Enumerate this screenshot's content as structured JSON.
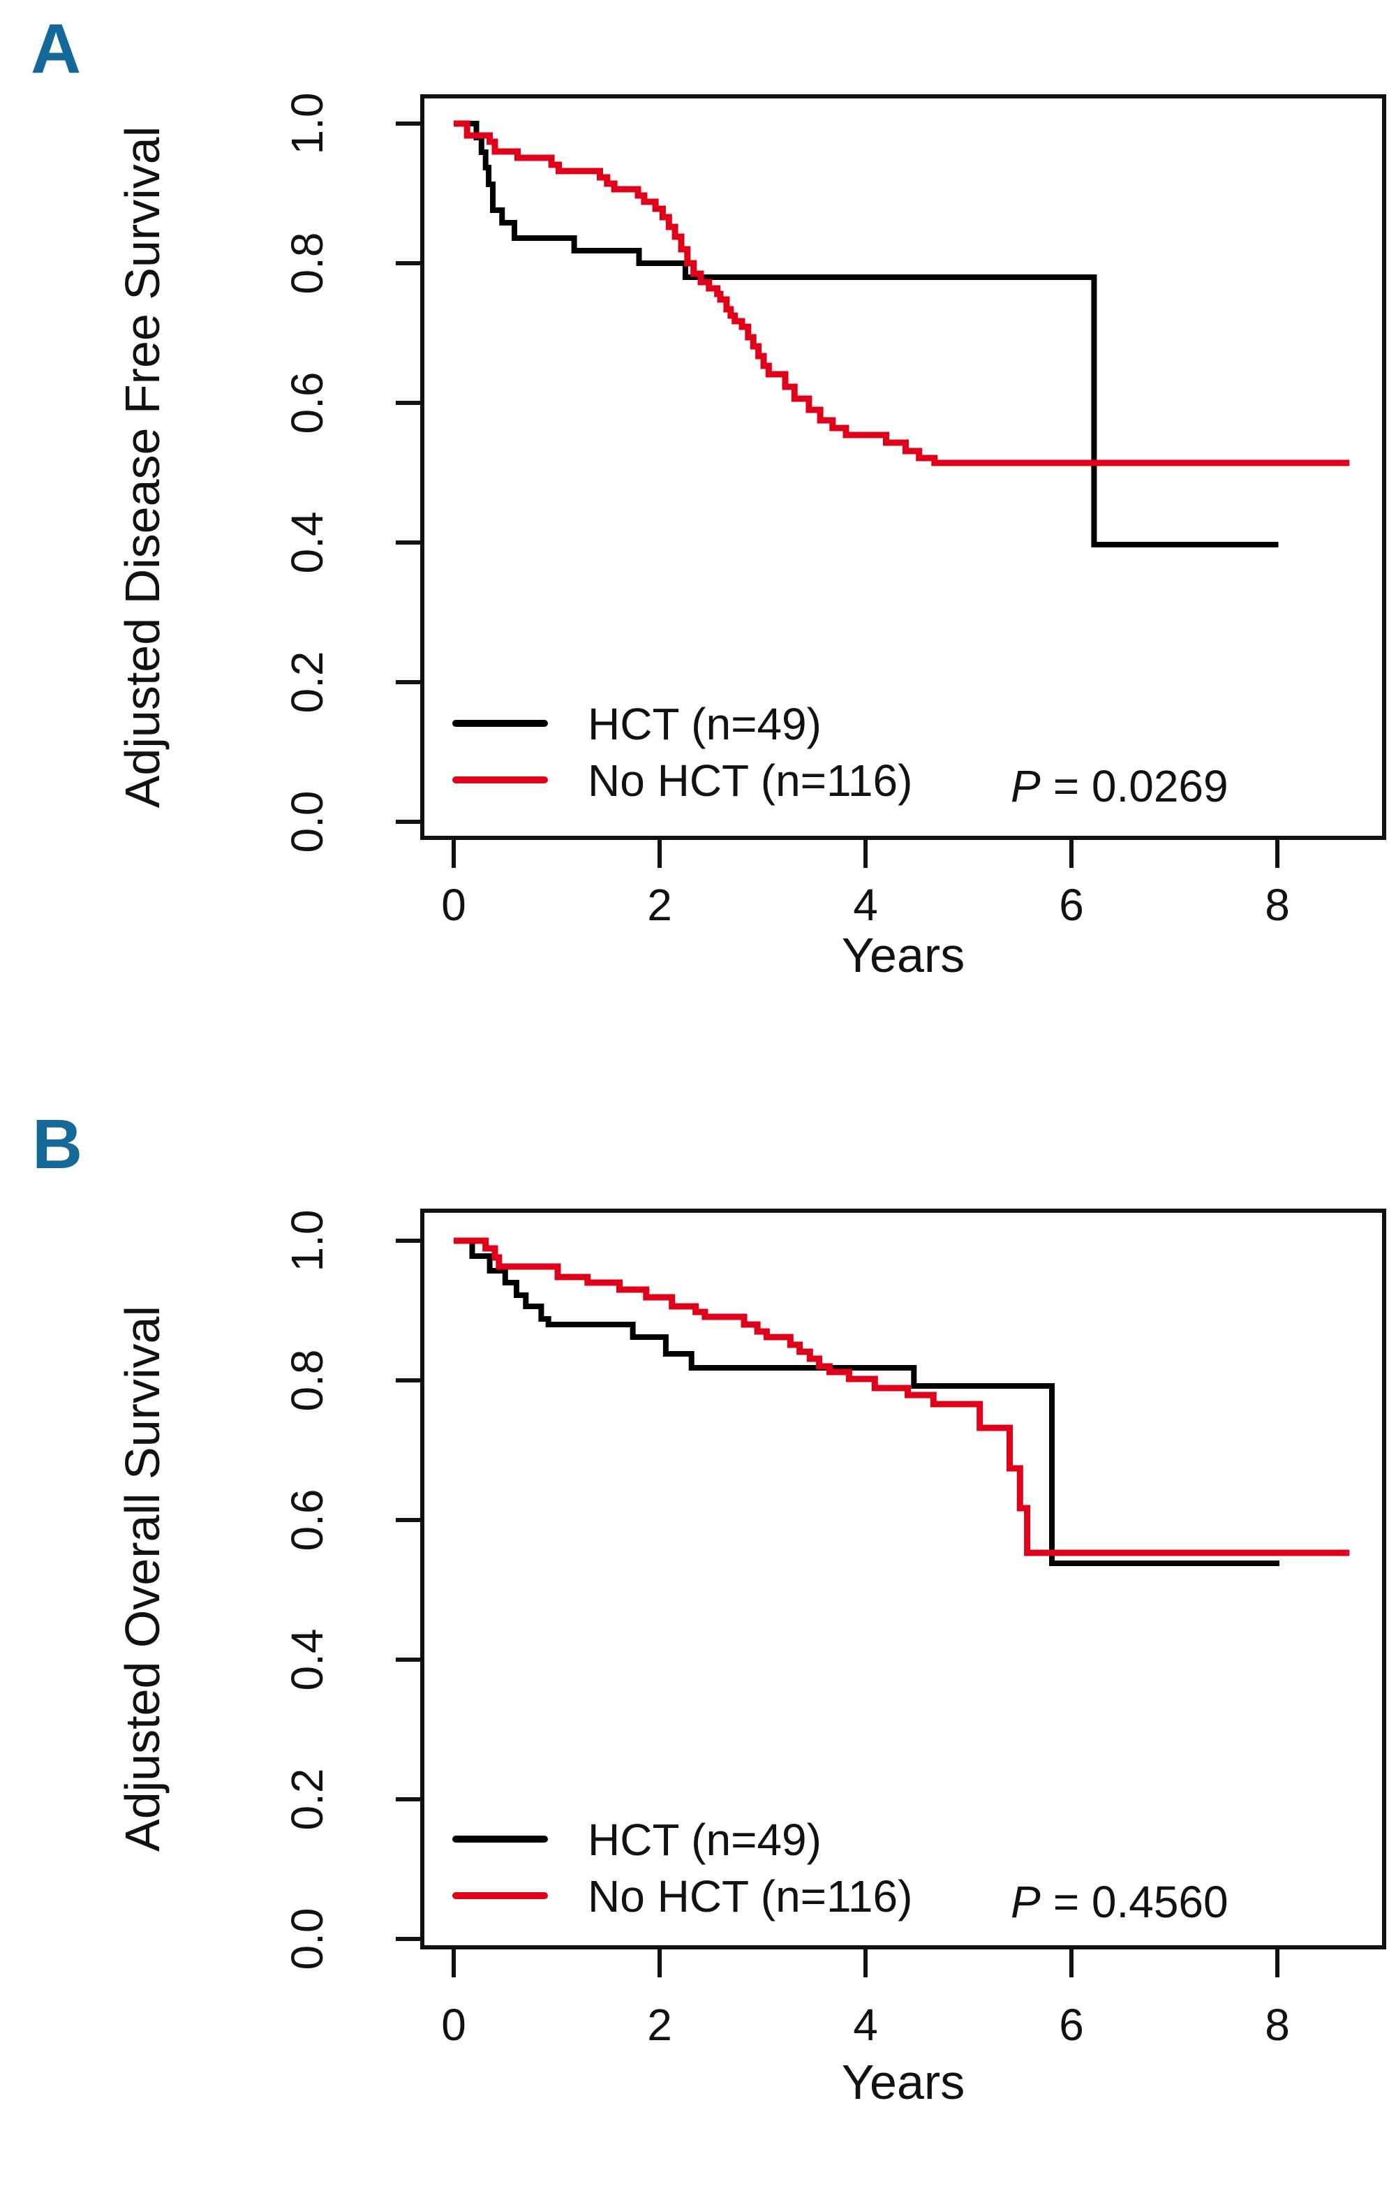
{
  "colors": {
    "accent": "#156999",
    "hct_series": "#000000",
    "no_hct_series": "#e10019",
    "axis": "#111111",
    "background": "#ffffff"
  },
  "chart_data": [
    {
      "type": "line",
      "subtype": "kaplan-meier-step",
      "panel_label": "A",
      "xlabel": "Years",
      "ylabel": "Adjusted Disease Free Survival",
      "xlim": [
        0,
        8.8
      ],
      "ylim": [
        0.0,
        1.0
      ],
      "xticks": [
        0,
        2,
        4,
        6,
        8
      ],
      "yticks": [
        0.0,
        0.2,
        0.4,
        0.6,
        0.8,
        1.0
      ],
      "ytick_labels": [
        "0.0",
        "0.2",
        "0.4",
        "0.6",
        "0.8",
        "1.0"
      ],
      "grid": false,
      "legend_position": "inside-bottom-left",
      "p_label": "P",
      "p_value": "= 0.0269",
      "series": [
        {
          "name": "HCT (n=49)",
          "color": "#000000",
          "start": [
            0,
            1.0
          ],
          "steps": [
            [
              0.22,
              0.98
            ],
            [
              0.27,
              0.959
            ],
            [
              0.31,
              0.937
            ],
            [
              0.34,
              0.913
            ],
            [
              0.38,
              0.876
            ],
            [
              0.47,
              0.858
            ],
            [
              0.59,
              0.836
            ],
            [
              1.17,
              0.818
            ],
            [
              1.8,
              0.8
            ],
            [
              2.25,
              0.78
            ],
            [
              6.22,
              0.397
            ]
          ],
          "end_time": 8.01
        },
        {
          "name": "No HCT (n=116)",
          "color": "#e10019",
          "start": [
            0,
            1.0
          ],
          "steps": [
            [
              0.13,
              0.983
            ],
            [
              0.35,
              0.974
            ],
            [
              0.4,
              0.96
            ],
            [
              0.62,
              0.951
            ],
            [
              0.95,
              0.941
            ],
            [
              1.02,
              0.932
            ],
            [
              1.42,
              0.923
            ],
            [
              1.49,
              0.914
            ],
            [
              1.56,
              0.906
            ],
            [
              1.79,
              0.897
            ],
            [
              1.85,
              0.888
            ],
            [
              1.96,
              0.878
            ],
            [
              2.03,
              0.866
            ],
            [
              2.09,
              0.852
            ],
            [
              2.15,
              0.838
            ],
            [
              2.21,
              0.82
            ],
            [
              2.27,
              0.8
            ],
            [
              2.33,
              0.785
            ],
            [
              2.4,
              0.773
            ],
            [
              2.48,
              0.764
            ],
            [
              2.56,
              0.756
            ],
            [
              2.59,
              0.748
            ],
            [
              2.65,
              0.734
            ],
            [
              2.69,
              0.725
            ],
            [
              2.73,
              0.717
            ],
            [
              2.8,
              0.709
            ],
            [
              2.86,
              0.694
            ],
            [
              2.91,
              0.681
            ],
            [
              2.96,
              0.667
            ],
            [
              3.01,
              0.653
            ],
            [
              3.06,
              0.641
            ],
            [
              3.22,
              0.623
            ],
            [
              3.31,
              0.606
            ],
            [
              3.45,
              0.59
            ],
            [
              3.56,
              0.575
            ],
            [
              3.68,
              0.564
            ],
            [
              3.81,
              0.554
            ],
            [
              4.2,
              0.543
            ],
            [
              4.39,
              0.531
            ],
            [
              4.52,
              0.521
            ],
            [
              4.67,
              0.514
            ]
          ],
          "end_time": 8.7
        }
      ]
    },
    {
      "type": "line",
      "subtype": "kaplan-meier-step",
      "panel_label": "B",
      "xlabel": "Years",
      "ylabel": "Adjusted Overall Survival",
      "xlim": [
        0,
        8.8
      ],
      "ylim": [
        0.0,
        1.0
      ],
      "xticks": [
        0,
        2,
        4,
        6,
        8
      ],
      "yticks": [
        0.0,
        0.2,
        0.4,
        0.6,
        0.8,
        1.0
      ],
      "ytick_labels": [
        "0.0",
        "0.2",
        "0.4",
        "0.6",
        "0.8",
        "1.0"
      ],
      "grid": false,
      "legend_position": "inside-bottom-left",
      "p_label": "P",
      "p_value": "= 0.4560",
      "series": [
        {
          "name": "HCT (n=49)",
          "color": "#000000",
          "start": [
            0,
            1.0
          ],
          "steps": [
            [
              0.18,
              0.978
            ],
            [
              0.35,
              0.957
            ],
            [
              0.5,
              0.94
            ],
            [
              0.61,
              0.922
            ],
            [
              0.7,
              0.906
            ],
            [
              0.85,
              0.888
            ],
            [
              0.92,
              0.88
            ],
            [
              1.74,
              0.862
            ],
            [
              2.06,
              0.838
            ],
            [
              2.31,
              0.818
            ],
            [
              4.47,
              0.792
            ],
            [
              5.81,
              0.538
            ]
          ],
          "end_time": 8.02
        },
        {
          "name": "No HCT (n=116)",
          "color": "#e10019",
          "start": [
            0,
            1.0
          ],
          "steps": [
            [
              0.31,
              0.989
            ],
            [
              0.4,
              0.976
            ],
            [
              0.44,
              0.963
            ],
            [
              1.01,
              0.948
            ],
            [
              1.3,
              0.94
            ],
            [
              1.61,
              0.93
            ],
            [
              1.87,
              0.919
            ],
            [
              2.12,
              0.906
            ],
            [
              2.35,
              0.898
            ],
            [
              2.44,
              0.891
            ],
            [
              2.82,
              0.88
            ],
            [
              2.95,
              0.87
            ],
            [
              3.04,
              0.862
            ],
            [
              3.27,
              0.851
            ],
            [
              3.36,
              0.841
            ],
            [
              3.46,
              0.831
            ],
            [
              3.55,
              0.82
            ],
            [
              3.65,
              0.812
            ],
            [
              3.84,
              0.802
            ],
            [
              4.09,
              0.789
            ],
            [
              4.41,
              0.779
            ],
            [
              4.66,
              0.766
            ],
            [
              5.11,
              0.732
            ],
            [
              5.4,
              0.674
            ],
            [
              5.5,
              0.617
            ],
            [
              5.57,
              0.553
            ]
          ],
          "end_time": 8.7
        }
      ]
    }
  ]
}
